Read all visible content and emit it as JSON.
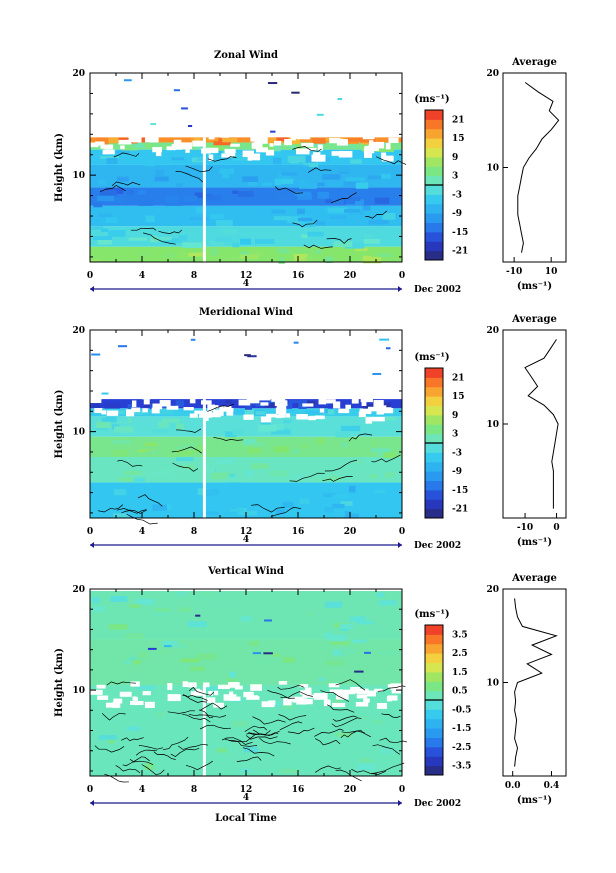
{
  "chart_data": [
    {
      "type": "heatmap",
      "title": "Zonal Wind",
      "ylabel": "Height (km)",
      "xlabel": "",
      "x_ticks": [
        "0",
        "4",
        "8",
        "12",
        "16",
        "20",
        "0"
      ],
      "y_ticks": [
        "10",
        "20"
      ],
      "xlim": [
        0,
        24
      ],
      "ylim": [
        1.5,
        20
      ],
      "date_marker": "4",
      "month_label": "Dec 2002",
      "colorbar": {
        "unit": "(ms⁻¹)",
        "ticks": [
          "21",
          "15",
          "9",
          "3",
          "-3",
          "-9",
          "-15",
          "-21"
        ],
        "range": [
          -24,
          24
        ],
        "zero_line": true
      },
      "bands": [
        {
          "y0": 1.5,
          "y1": 3.0,
          "value": 6
        },
        {
          "y0": 3.0,
          "y1": 5.0,
          "value": -2
        },
        {
          "y0": 5.0,
          "y1": 7.0,
          "value": -6
        },
        {
          "y0": 7.0,
          "y1": 8.8,
          "value": -13
        },
        {
          "y0": 8.8,
          "y1": 11.0,
          "value": -7
        },
        {
          "y0": 11.0,
          "y1": 12.5,
          "value": -5
        },
        {
          "y0": 12.5,
          "y1": 13.2,
          "value": 4
        },
        {
          "y0": 13.2,
          "y1": 13.7,
          "value": 18
        }
      ],
      "sparse_region": [
        13.7,
        20
      ],
      "gap_time": 8.8,
      "average": {
        "title": "Average",
        "xlabel": "(ms⁻¹)",
        "x_ticks": [
          "-10",
          "10"
        ],
        "xlim": [
          -16,
          18
        ],
        "y_ticks": [
          "10",
          "20"
        ],
        "ylim": [
          0,
          20
        ],
        "profile": [
          [
            1,
            -6
          ],
          [
            2,
            -5
          ],
          [
            3,
            -6
          ],
          [
            4,
            -7
          ],
          [
            5,
            -8
          ],
          [
            6,
            -8
          ],
          [
            7,
            -8
          ],
          [
            8,
            -7
          ],
          [
            9,
            -6
          ],
          [
            10,
            -5
          ],
          [
            11,
            -2
          ],
          [
            12,
            2
          ],
          [
            13,
            5
          ],
          [
            14,
            10
          ],
          [
            15,
            14
          ],
          [
            16,
            9
          ],
          [
            17,
            11
          ],
          [
            18,
            3
          ],
          [
            19,
            -4
          ]
        ]
      }
    },
    {
      "type": "heatmap",
      "title": "Meridional Wind",
      "ylabel": "Height (km)",
      "xlabel": "",
      "x_ticks": [
        "0",
        "4",
        "8",
        "12",
        "16",
        "20",
        "0"
      ],
      "y_ticks": [
        "10",
        "20"
      ],
      "xlim": [
        0,
        24
      ],
      "ylim": [
        1.5,
        20
      ],
      "date_marker": "4",
      "month_label": "Dec 2002",
      "colorbar": {
        "unit": "(ms⁻¹)",
        "ticks": [
          "21",
          "15",
          "9",
          "3",
          "-3",
          "-9",
          "-15",
          "-21"
        ],
        "range": [
          -24,
          24
        ],
        "zero_line": true
      },
      "bands": [
        {
          "y0": 1.5,
          "y1": 5.0,
          "value": -5
        },
        {
          "y0": 5.0,
          "y1": 7.5,
          "value": 1
        },
        {
          "y0": 7.5,
          "y1": 9.5,
          "value": 4
        },
        {
          "y0": 9.5,
          "y1": 11.5,
          "value": -1
        },
        {
          "y0": 11.5,
          "y1": 12.3,
          "value": -4
        },
        {
          "y0": 12.3,
          "y1": 13.2,
          "value": -18
        }
      ],
      "sparse_region": [
        13.2,
        20
      ],
      "gap_time": 8.8,
      "average": {
        "title": "Average",
        "xlabel": "(ms⁻¹)",
        "x_ticks": [
          "-10",
          "0"
        ],
        "xlim": [
          -17,
          3
        ],
        "y_ticks": [
          "10",
          "20"
        ],
        "ylim": [
          0,
          20
        ],
        "profile": [
          [
            1,
            -1
          ],
          [
            2,
            -1
          ],
          [
            3,
            -1
          ],
          [
            4,
            -1
          ],
          [
            5,
            -1
          ],
          [
            6,
            -1.5
          ],
          [
            7,
            -1
          ],
          [
            8,
            -0.5
          ],
          [
            9,
            0
          ],
          [
            10,
            0.5
          ],
          [
            11,
            -1
          ],
          [
            12,
            -4
          ],
          [
            13,
            -9
          ],
          [
            14,
            -6
          ],
          [
            15,
            -8
          ],
          [
            16,
            -10
          ],
          [
            17,
            -4
          ],
          [
            18,
            -2
          ],
          [
            19,
            0
          ]
        ]
      }
    },
    {
      "type": "heatmap",
      "title": "Vertical Wind",
      "ylabel": "Height (km)",
      "xlabel": "Local Time",
      "x_ticks": [
        "0",
        "4",
        "8",
        "12",
        "16",
        "20",
        "0"
      ],
      "y_ticks": [
        "10",
        "20"
      ],
      "xlim": [
        0,
        24
      ],
      "ylim": [
        1.5,
        20
      ],
      "date_marker": "4",
      "month_label": "Dec 2002",
      "colorbar": {
        "unit": "(ms⁻¹)",
        "ticks": [
          "3.5",
          "2.5",
          "1.5",
          "0.5",
          "-0.5",
          "-1.5",
          "-2.5",
          "-3.5"
        ],
        "range": [
          -4,
          4
        ],
        "zero_line": true
      },
      "bands": [
        {
          "y0": 1.5,
          "y1": 10.5,
          "value": 0.2
        },
        {
          "y0": 10.5,
          "y1": 15.0,
          "value": 0.4
        },
        {
          "y0": 15.0,
          "y1": 19.8,
          "value": 0.3
        }
      ],
      "sparse_region": [
        10.5,
        20
      ],
      "gap_time": 8.8,
      "average": {
        "title": "Average",
        "xlabel": "(ms⁻¹)",
        "x_ticks": [
          "0.0",
          "0.4"
        ],
        "xlim": [
          -0.1,
          0.55
        ],
        "y_ticks": [
          "10",
          "20"
        ],
        "ylim": [
          0,
          20
        ],
        "profile": [
          [
            1,
            0.02
          ],
          [
            2,
            0.03
          ],
          [
            3,
            0.05
          ],
          [
            4,
            0.02
          ],
          [
            5,
            0.03
          ],
          [
            6,
            0.04
          ],
          [
            7,
            0.02
          ],
          [
            8,
            0.03
          ],
          [
            9,
            0.02
          ],
          [
            10,
            0.05
          ],
          [
            11,
            0.3
          ],
          [
            12,
            0.15
          ],
          [
            13,
            0.4
          ],
          [
            14,
            0.2
          ],
          [
            15,
            0.45
          ],
          [
            16,
            0.1
          ],
          [
            17,
            0.05
          ],
          [
            18,
            0.03
          ],
          [
            19,
            0.02
          ]
        ]
      }
    }
  ]
}
